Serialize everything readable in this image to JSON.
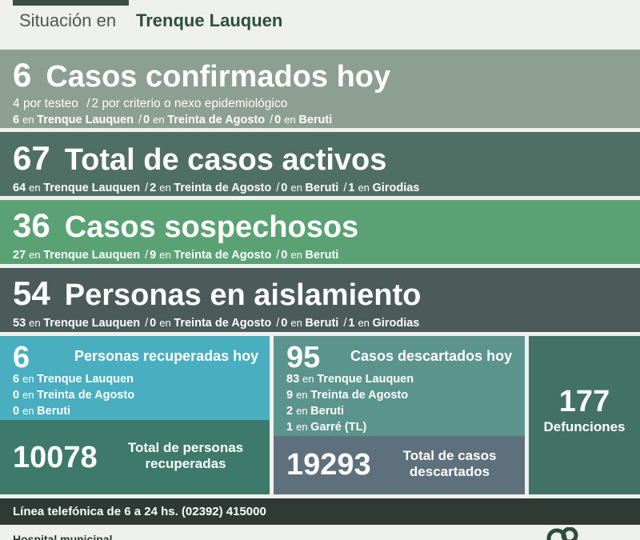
{
  "header": {
    "label": "Situación en",
    "city": "Trenque Lauquen"
  },
  "confirmed": {
    "count": "6",
    "title": "Casos confirmados hoy",
    "line1": [
      {
        "n": "4",
        "t": "por testeo"
      },
      {
        "n": "2",
        "t": "por criterio o nexo epidemiológico"
      }
    ],
    "line2": [
      {
        "n": "6",
        "place": "Trenque Lauquen"
      },
      {
        "n": "0",
        "place": "Treinta de Agosto"
      },
      {
        "n": "0",
        "place": "Beruti"
      }
    ]
  },
  "active": {
    "count": "67",
    "title": "Total de casos activos",
    "line": [
      {
        "n": "64",
        "place": "Trenque Lauquen"
      },
      {
        "n": "2",
        "place": "Treinta de Agosto"
      },
      {
        "n": "0",
        "place": "Beruti"
      },
      {
        "n": "1",
        "place": "Girodias"
      }
    ]
  },
  "suspected": {
    "count": "36",
    "title": "Casos sospechosos",
    "line": [
      {
        "n": "27",
        "place": "Trenque Lauquen"
      },
      {
        "n": "9",
        "place": "Treinta de Agosto"
      },
      {
        "n": "0",
        "place": "Beruti"
      }
    ]
  },
  "isolation": {
    "count": "54",
    "title": "Personas en aislamiento",
    "line": [
      {
        "n": "53",
        "place": "Trenque Lauquen"
      },
      {
        "n": "0",
        "place": "Treinta de Agosto"
      },
      {
        "n": "0",
        "place": "Beruti"
      },
      {
        "n": "1",
        "place": "Girodias"
      }
    ]
  },
  "recovered": {
    "count": "6",
    "title": "Personas recuperadas hoy",
    "list": [
      {
        "n": "6",
        "place": "Trenque Lauquen"
      },
      {
        "n": "0",
        "place": "Treinta de Agosto"
      },
      {
        "n": "0",
        "place": "Beruti"
      }
    ],
    "total": "10078",
    "total_l1": "Total de personas",
    "total_l2": "recuperadas"
  },
  "discarded": {
    "count": "95",
    "title": "Casos descartados hoy",
    "list": [
      {
        "n": "83",
        "place": "Trenque Lauquen"
      },
      {
        "n": "9",
        "place": "Treinta de Agosto"
      },
      {
        "n": "2",
        "place": "Beruti"
      },
      {
        "n": "1",
        "place": "Garré (TL)"
      }
    ],
    "total": "19293",
    "total_l1": "Total de casos",
    "total_l2": "descartados"
  },
  "deaths": {
    "count": "177",
    "label": "Defunciones"
  },
  "en": "en",
  "sep": "/",
  "phone": "Línea telefónica de 6 a 24 hs. (02392) 415000",
  "footer": {
    "text": "Hospital municipal"
  },
  "colors": {
    "confirmed": "#8d9f93",
    "active": "#4f6e64",
    "suspected": "#5aa274",
    "isolation": "#4a5b5a",
    "recovered": "#49aec0",
    "recovered_total": "#3d7a6b",
    "discarded": "#5a948d",
    "discarded_total": "#5d707c",
    "deaths": "#427263",
    "phone_bar": "#2f3a34"
  }
}
